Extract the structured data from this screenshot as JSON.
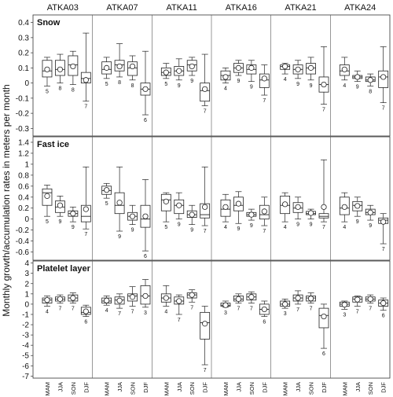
{
  "chart_data": {
    "type": "boxplot",
    "ylabel": "Monthly growth/accumulation rates in meters per month",
    "stations": [
      "ATKA03",
      "ATKA07",
      "ATKA11",
      "ATKA16",
      "ATKA21",
      "ATKA24"
    ],
    "seasons": [
      "MAM",
      "JJA",
      "SON",
      "DJF"
    ],
    "panels": [
      {
        "name": "Snow",
        "ylim": [
          -0.35,
          0.45
        ],
        "yticks": [
          -0.3,
          -0.2,
          -0.1,
          0,
          0.1,
          0.2,
          0.3,
          0.4
        ],
        "boxes": [
          [
            {
              "min": -0.02,
              "q1": 0.04,
              "median": 0.08,
              "q3": 0.15,
              "max": 0.17,
              "mean": 0.09,
              "n": 5
            },
            {
              "min": 0.0,
              "q1": 0.05,
              "median": 0.09,
              "q3": 0.15,
              "max": 0.19,
              "mean": 0.09,
              "n": 8
            },
            {
              "min": -0.01,
              "q1": 0.05,
              "median": 0.12,
              "q3": 0.18,
              "max": 0.21,
              "mean": 0.11,
              "n": 8
            },
            {
              "min": -0.12,
              "q1": 0.0,
              "median": 0.03,
              "q3": 0.07,
              "max": 0.33,
              "mean": 0.02,
              "n": 7
            }
          ],
          [
            {
              "min": 0.03,
              "q1": 0.06,
              "median": 0.09,
              "q3": 0.14,
              "max": 0.17,
              "mean": 0.1,
              "n": 5
            },
            {
              "min": 0.04,
              "q1": 0.08,
              "median": 0.12,
              "q3": 0.15,
              "max": 0.26,
              "mean": 0.11,
              "n": 8
            },
            {
              "min": 0.02,
              "q1": 0.05,
              "median": 0.1,
              "q3": 0.14,
              "max": 0.18,
              "mean": 0.11,
              "n": 8
            },
            {
              "min": -0.21,
              "q1": -0.08,
              "median": -0.04,
              "q3": 0.0,
              "max": 0.21,
              "mean": -0.04,
              "n": 6
            }
          ],
          [
            {
              "min": 0.03,
              "q1": 0.05,
              "median": 0.07,
              "q3": 0.1,
              "max": 0.13,
              "mean": 0.07,
              "n": 5
            },
            {
              "min": 0.02,
              "q1": 0.05,
              "median": 0.08,
              "q3": 0.11,
              "max": 0.16,
              "mean": 0.08,
              "n": 9
            },
            {
              "min": 0.05,
              "q1": 0.08,
              "median": 0.12,
              "q3": 0.15,
              "max": 0.17,
              "mean": 0.11,
              "n": 9
            },
            {
              "min": -0.15,
              "q1": -0.12,
              "median": -0.05,
              "q3": 0.0,
              "max": 0.19,
              "mean": -0.04,
              "n": 7
            }
          ],
          [
            {
              "min": 0.0,
              "q1": 0.02,
              "median": 0.05,
              "q3": 0.08,
              "max": 0.1,
              "mean": 0.04,
              "n": 4
            },
            {
              "min": 0.05,
              "q1": 0.07,
              "median": 0.1,
              "q3": 0.13,
              "max": 0.15,
              "mean": 0.1,
              "n": 9
            },
            {
              "min": 0.01,
              "q1": 0.06,
              "median": 0.09,
              "q3": 0.12,
              "max": 0.15,
              "mean": 0.1,
              "n": 9
            },
            {
              "min": -0.08,
              "q1": -0.03,
              "median": 0.02,
              "q3": 0.06,
              "max": 0.12,
              "mean": 0.03,
              "n": 7
            }
          ],
          [
            {
              "min": 0.06,
              "q1": 0.09,
              "median": 0.11,
              "q3": 0.12,
              "max": 0.13,
              "mean": 0.11,
              "n": 4
            },
            {
              "min": 0.03,
              "q1": 0.06,
              "median": 0.09,
              "q3": 0.12,
              "max": 0.15,
              "mean": 0.09,
              "n": 9
            },
            {
              "min": 0.02,
              "q1": 0.06,
              "median": 0.1,
              "q3": 0.13,
              "max": 0.17,
              "mean": 0.1,
              "n": 9
            },
            {
              "min": -0.14,
              "q1": -0.06,
              "median": -0.01,
              "q3": 0.04,
              "max": 0.24,
              "mean": -0.01,
              "n": 7
            }
          ],
          [
            {
              "min": 0.02,
              "q1": 0.05,
              "median": 0.08,
              "q3": 0.12,
              "max": 0.17,
              "mean": 0.09,
              "n": 4
            },
            {
              "min": 0.01,
              "q1": 0.03,
              "median": 0.04,
              "q3": 0.05,
              "max": 0.08,
              "mean": 0.04,
              "n": 9
            },
            {
              "min": -0.02,
              "q1": 0.01,
              "median": 0.02,
              "q3": 0.04,
              "max": 0.06,
              "mean": 0.02,
              "n": 8
            },
            {
              "min": -0.13,
              "q1": -0.03,
              "median": 0.04,
              "q3": 0.08,
              "max": 0.24,
              "mean": 0.04,
              "n": 7
            }
          ]
        ]
      },
      {
        "name": "Fast ice",
        "ylim": [
          -0.75,
          1.5
        ],
        "yticks": [
          -0.6,
          -0.4,
          -0.2,
          0,
          0.2,
          0.4,
          0.6,
          0.8,
          1,
          1.2,
          1.4
        ],
        "boxes": [
          [
            {
              "min": 0.05,
              "q1": 0.25,
              "median": 0.48,
              "q3": 0.55,
              "max": 0.62,
              "mean": 0.42,
              "n": 5
            },
            {
              "min": 0.05,
              "q1": 0.12,
              "median": 0.22,
              "q3": 0.33,
              "max": 0.42,
              "mean": 0.25,
              "n": 9
            },
            {
              "min": -0.05,
              "q1": 0.05,
              "median": 0.1,
              "q3": 0.15,
              "max": 0.22,
              "mean": 0.1,
              "n": 9
            },
            {
              "min": -0.18,
              "q1": -0.05,
              "median": 0.05,
              "q3": 0.25,
              "max": 0.95,
              "mean": 0.18,
              "n": 7
            }
          ],
          [
            {
              "min": 0.38,
              "q1": 0.45,
              "median": 0.52,
              "q3": 0.6,
              "max": 0.65,
              "mean": 0.53,
              "n": 5
            },
            {
              "min": -0.22,
              "q1": 0.1,
              "median": 0.25,
              "q3": 0.48,
              "max": 0.95,
              "mean": 0.3,
              "n": 9
            },
            {
              "min": -0.1,
              "q1": -0.02,
              "median": 0.05,
              "q3": 0.12,
              "max": 0.25,
              "mean": 0.05,
              "n": 9
            },
            {
              "min": -0.58,
              "q1": -0.15,
              "median": 0.0,
              "q3": 0.25,
              "max": 0.72,
              "mean": 0.05,
              "n": 6
            }
          ],
          [
            {
              "min": -0.05,
              "q1": 0.15,
              "median": 0.35,
              "q3": 0.45,
              "max": 0.48,
              "mean": 0.32,
              "n": 5
            },
            {
              "min": 0.0,
              "q1": 0.1,
              "median": 0.25,
              "q3": 0.35,
              "max": 0.48,
              "mean": 0.25,
              "n": 9
            },
            {
              "min": -0.1,
              "q1": 0.03,
              "median": 0.08,
              "q3": 0.15,
              "max": 0.25,
              "mean": 0.08,
              "n": 9
            },
            {
              "min": -0.12,
              "q1": 0.02,
              "median": 0.08,
              "q3": 0.28,
              "max": 0.95,
              "mean": 0.22,
              "n": 7
            }
          ],
          [
            {
              "min": -0.05,
              "q1": 0.05,
              "median": 0.18,
              "q3": 0.35,
              "max": 0.45,
              "mean": 0.22,
              "n": 4
            },
            {
              "min": -0.08,
              "q1": 0.15,
              "median": 0.25,
              "q3": 0.4,
              "max": 0.5,
              "mean": 0.28,
              "n": 9
            },
            {
              "min": -0.02,
              "q1": 0.05,
              "median": 0.08,
              "q3": 0.12,
              "max": 0.18,
              "mean": 0.08,
              "n": 9
            },
            {
              "min": -0.12,
              "q1": 0.0,
              "median": 0.08,
              "q3": 0.25,
              "max": 0.4,
              "mean": 0.14,
              "n": 7
            }
          ],
          [
            {
              "min": -0.05,
              "q1": 0.1,
              "median": 0.25,
              "q3": 0.42,
              "max": 0.48,
              "mean": 0.27,
              "n": 4
            },
            {
              "min": 0.0,
              "q1": 0.12,
              "median": 0.2,
              "q3": 0.3,
              "max": 0.4,
              "mean": 0.22,
              "n": 9
            },
            {
              "min": 0.0,
              "q1": 0.08,
              "median": 0.1,
              "q3": 0.14,
              "max": 0.18,
              "mean": 0.11,
              "n": 9
            },
            {
              "min": -0.05,
              "q1": 0.02,
              "median": 0.05,
              "q3": 0.1,
              "max": 1.08,
              "mean": 0.22,
              "n": 7
            }
          ],
          [
            {
              "min": -0.05,
              "q1": 0.08,
              "median": 0.2,
              "q3": 0.4,
              "max": 0.48,
              "mean": 0.22,
              "n": 4
            },
            {
              "min": 0.05,
              "q1": 0.15,
              "median": 0.25,
              "q3": 0.32,
              "max": 0.4,
              "mean": 0.24,
              "n": 9
            },
            {
              "min": -0.02,
              "q1": 0.08,
              "median": 0.12,
              "q3": 0.18,
              "max": 0.25,
              "mean": 0.12,
              "n": 9
            },
            {
              "min": -0.45,
              "q1": -0.08,
              "median": -0.02,
              "q3": 0.02,
              "max": 0.1,
              "mean": -0.05,
              "n": 7
            }
          ]
        ]
      },
      {
        "name": "Platelet layer",
        "ylim": [
          -7.2,
          4.2
        ],
        "yticks": [
          -7,
          -6,
          -5,
          -4,
          -3,
          -2,
          -1,
          0,
          1,
          2,
          3,
          4
        ],
        "boxes": [
          [
            {
              "min": -0.2,
              "q1": 0.1,
              "median": 0.4,
              "q3": 0.6,
              "max": 0.8,
              "mean": 0.4,
              "n": 4
            },
            {
              "min": 0.1,
              "q1": 0.3,
              "median": 0.5,
              "q3": 0.7,
              "max": 0.9,
              "mean": 0.5,
              "n": 7
            },
            {
              "min": 0.1,
              "q1": 0.3,
              "median": 0.6,
              "q3": 0.9,
              "max": 1.1,
              "mean": 0.6,
              "n": 7
            },
            {
              "min": -1.2,
              "q1": -1.0,
              "median": -0.8,
              "q3": -0.3,
              "max": -0.1,
              "mean": -0.7,
              "n": 6
            }
          ],
          [
            {
              "min": -0.1,
              "q1": 0.1,
              "median": 0.3,
              "q3": 0.6,
              "max": 0.8,
              "mean": 0.35,
              "n": 4
            },
            {
              "min": -0.4,
              "q1": 0.0,
              "median": 0.4,
              "q3": 0.7,
              "max": 1.0,
              "mean": 0.35,
              "n": 7
            },
            {
              "min": -0.2,
              "q1": 0.3,
              "median": 0.8,
              "q3": 1.0,
              "max": 1.7,
              "mean": 0.7,
              "n": 7
            },
            {
              "min": -0.3,
              "q1": 0.0,
              "median": 0.8,
              "q3": 1.8,
              "max": 2.4,
              "mean": 0.8,
              "n": 3
            }
          ],
          [
            {
              "min": -0.2,
              "q1": 0.2,
              "median": 0.6,
              "q3": 1.0,
              "max": 1.8,
              "mean": 0.6,
              "n": 4
            },
            {
              "min": -1.0,
              "q1": 0.0,
              "median": 0.3,
              "q3": 0.7,
              "max": 0.9,
              "mean": 0.3,
              "n": 7
            },
            {
              "min": 0.2,
              "q1": 0.6,
              "median": 0.9,
              "q3": 1.1,
              "max": 1.4,
              "mean": 0.9,
              "n": 7
            },
            {
              "min": -5.9,
              "q1": -3.4,
              "median": -1.8,
              "q3": -0.8,
              "max": -0.2,
              "mean": -1.9,
              "n": 7
            }
          ],
          [
            {
              "min": -0.3,
              "q1": -0.2,
              "median": -0.1,
              "q3": 0.1,
              "max": 0.3,
              "mean": -0.1,
              "n": 3
            },
            {
              "min": 0.1,
              "q1": 0.3,
              "median": 0.5,
              "q3": 0.8,
              "max": 1.0,
              "mean": 0.5,
              "n": 7
            },
            {
              "min": 0.1,
              "q1": 0.4,
              "median": 0.7,
              "q3": 1.0,
              "max": 1.2,
              "mean": 0.7,
              "n": 7
            },
            {
              "min": -1.2,
              "q1": -1.0,
              "median": -0.5,
              "q3": 0.0,
              "max": 0.3,
              "mean": -0.5,
              "n": 6
            }
          ],
          [
            {
              "min": -0.4,
              "q1": -0.2,
              "median": 0.0,
              "q3": 0.3,
              "max": 0.5,
              "mean": 0.0,
              "n": 3
            },
            {
              "min": 0.0,
              "q1": 0.3,
              "median": 0.6,
              "q3": 0.9,
              "max": 1.3,
              "mean": 0.6,
              "n": 7
            },
            {
              "min": 0.1,
              "q1": 0.3,
              "median": 0.6,
              "q3": 0.8,
              "max": 1.1,
              "mean": 0.55,
              "n": 7
            },
            {
              "min": -4.3,
              "q1": -2.3,
              "median": -1.1,
              "q3": -0.4,
              "max": 0.0,
              "mean": -1.2,
              "n": 6
            }
          ],
          [
            {
              "min": -0.5,
              "q1": -0.2,
              "median": 0.0,
              "q3": 0.2,
              "max": 0.3,
              "mean": -0.05,
              "n": 3
            },
            {
              "min": -0.2,
              "q1": 0.2,
              "median": 0.5,
              "q3": 0.7,
              "max": 0.8,
              "mean": 0.45,
              "n": 7
            },
            {
              "min": 0.1,
              "q1": 0.3,
              "median": 0.5,
              "q3": 0.7,
              "max": 0.9,
              "mean": 0.5,
              "n": 7
            },
            {
              "min": -0.6,
              "q1": -0.2,
              "median": 0.1,
              "q3": 0.4,
              "max": 0.6,
              "mean": 0.1,
              "n": 6
            }
          ]
        ]
      }
    ]
  }
}
